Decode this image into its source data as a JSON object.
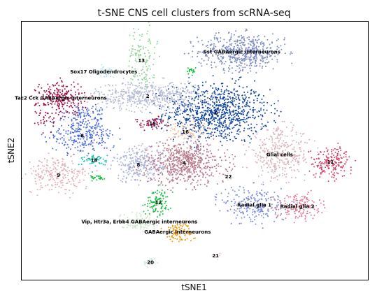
{
  "chart_data": {
    "type": "scatter",
    "title": "t-SNE CNS cell clusters from scRNA-seq",
    "xlabel": "tSNE1",
    "ylabel": "tSNE2",
    "grid": false,
    "legend": "none",
    "xlim": [
      0,
      100
    ],
    "ylim": [
      0,
      100
    ],
    "clusters": [
      {
        "id": "c0",
        "label": "0",
        "x": 56.2,
        "y": 64.6,
        "sx": 7.6,
        "sy": 5.7,
        "n": 900,
        "color": "#1144a0"
      },
      {
        "id": "c1",
        "label": "Sst GABAergic interneurons",
        "x": 63.6,
        "y": 88.3,
        "sx": 6.3,
        "sy": 3.5,
        "n": 520,
        "color": "#7d8cc4"
      },
      {
        "id": "c2",
        "label": "2",
        "x": 36.4,
        "y": 71.2,
        "sx": 7.5,
        "sy": 2.9,
        "n": 520,
        "color": "#b8bcd6"
      },
      {
        "id": "c4",
        "label": "4",
        "x": 47.0,
        "y": 45.3,
        "sx": 6.2,
        "sy": 4.2,
        "n": 650,
        "color": "#b87a8c"
      },
      {
        "id": "c5",
        "label": "Glial cells",
        "x": 74.5,
        "y": 48.5,
        "sx": 4.6,
        "sy": 5.0,
        "n": 350,
        "color": "#d9b6bd"
      },
      {
        "id": "c6",
        "label": "6",
        "x": 17.5,
        "y": 55.8,
        "sx": 4.7,
        "sy": 3.4,
        "n": 260,
        "color": "#4b6bd9"
      },
      {
        "id": "c6b",
        "label": "",
        "x": 18.5,
        "y": 64.0,
        "sx": 2.7,
        "sy": 2.2,
        "n": 80,
        "color": "#4b6bd9"
      },
      {
        "id": "c7",
        "label": "Tac2 Cck GABAergic interneurons",
        "x": 11.3,
        "y": 70.4,
        "sx": 3.5,
        "sy": 3.2,
        "n": 230,
        "color": "#9c1044"
      },
      {
        "id": "c7b",
        "label": "",
        "x": 6.8,
        "y": 62.0,
        "sx": 1.3,
        "sy": 2.8,
        "n": 35,
        "color": "#9c1044"
      },
      {
        "id": "c8",
        "label": "8",
        "x": 33.7,
        "y": 44.6,
        "sx": 3.5,
        "sy": 3.4,
        "n": 240,
        "color": "#aab3dc"
      },
      {
        "id": "c9",
        "label": "9",
        "x": 10.6,
        "y": 40.5,
        "sx": 4.6,
        "sy": 3.5,
        "n": 230,
        "color": "#e3afb8"
      },
      {
        "id": "c11",
        "label": "11",
        "x": 89.2,
        "y": 45.6,
        "sx": 3.1,
        "sy": 2.9,
        "n": 180,
        "color": "#d2446a"
      },
      {
        "id": "c12",
        "label": "12",
        "x": 39.5,
        "y": 30.0,
        "sx": 1.9,
        "sy": 2.6,
        "n": 100,
        "color": "#19bf44"
      },
      {
        "id": "c13",
        "label": "13",
        "x": 34.6,
        "y": 85.0,
        "sx": 2.1,
        "sy": 6.4,
        "n": 130,
        "color": "#95d396"
      },
      {
        "id": "c15",
        "label": "15",
        "x": 37.8,
        "y": 60.6,
        "sx": 2.2,
        "sy": 1.3,
        "n": 60,
        "color": "#a51a53"
      },
      {
        "id": "c16",
        "label": "16",
        "x": 47.3,
        "y": 57.3,
        "sx": 3.2,
        "sy": 2.4,
        "n": 80,
        "color": "#f1c2a6"
      },
      {
        "id": "c17",
        "label": "Sox17 Oligodendrocytes",
        "x": 23.7,
        "y": 80.6,
        "sx": 1.5,
        "sy": 1.2,
        "n": 35,
        "color": "#bde6f0"
      },
      {
        "id": "c18",
        "label": "18",
        "x": 20.9,
        "y": 46.3,
        "sx": 1.9,
        "sy": 1.3,
        "n": 50,
        "color": "#12c8b8"
      },
      {
        "id": "c19",
        "label": "",
        "x": 22.0,
        "y": 39.8,
        "sx": 1.1,
        "sy": 0.9,
        "n": 25,
        "color": "#19bf44"
      },
      {
        "id": "c20",
        "label": "20",
        "x": 37.2,
        "y": 6.8,
        "sx": 1.3,
        "sy": 0.9,
        "n": 25,
        "color": "#cfe6df"
      },
      {
        "id": "c21",
        "label": "21",
        "x": 56.0,
        "y": 9.3,
        "sx": 0.8,
        "sy": 0.6,
        "n": 10,
        "color": "#f2d4d8"
      },
      {
        "id": "c22",
        "label": "22",
        "x": 59.7,
        "y": 40.0,
        "sx": 0.7,
        "sy": 0.7,
        "n": 10,
        "color": "#f2d4d8"
      },
      {
        "id": "cRG1",
        "label": "Radial glia 1",
        "x": 67.2,
        "y": 29.0,
        "sx": 4.6,
        "sy": 3.8,
        "n": 230,
        "color": "#7d8fdc"
      },
      {
        "id": "cRG2",
        "label": "Radial glia 2",
        "x": 79.6,
        "y": 28.5,
        "sx": 3.3,
        "sy": 2.6,
        "n": 150,
        "color": "#e07b96"
      },
      {
        "id": "cVIP",
        "label": "Vip, Htr3a, Erbb4 GABAergic interneurons",
        "x": 34.0,
        "y": 22.5,
        "sx": 2.7,
        "sy": 1.8,
        "n": 90,
        "color": "#cfe6c9"
      },
      {
        "id": "cGABA",
        "label": "GABAergic interneurons",
        "x": 45.0,
        "y": 18.5,
        "sx": 2.2,
        "sy": 1.9,
        "n": 90,
        "color": "#ef9a12"
      },
      {
        "id": "cSstG",
        "label": "",
        "x": 49.0,
        "y": 81.0,
        "sx": 0.7,
        "sy": 0.9,
        "n": 20,
        "color": "#19bf44"
      }
    ]
  }
}
